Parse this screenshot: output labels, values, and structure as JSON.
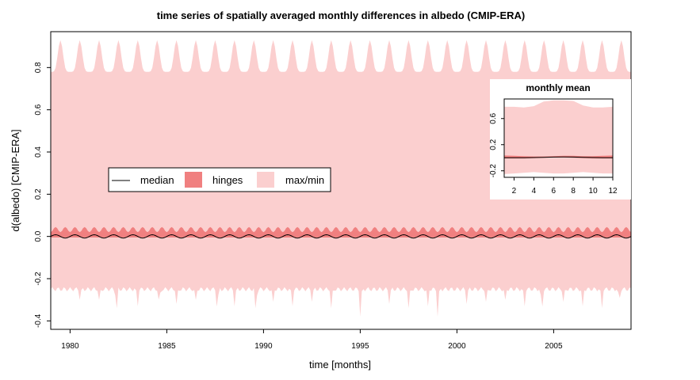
{
  "chart_data": [
    {
      "type": "area",
      "title": "time series of spatially averaged monthly differences in albedo (CMIP-ERA)",
      "xlabel": "time [months]",
      "ylabel": "d(albedo) [CMIP-ERA]",
      "xlim": [
        1979.0,
        2009.0
      ],
      "ylim": [
        -0.44,
        0.97
      ],
      "x_ticks": [
        1980,
        1985,
        1990,
        1995,
        2000,
        2005
      ],
      "y_ticks": [
        -0.4,
        -0.2,
        0.0,
        0.2,
        0.4,
        0.6,
        0.8
      ],
      "grid": false,
      "legend_position": "center-left",
      "legend": [
        {
          "label": "median",
          "kind": "line",
          "color": "#000000"
        },
        {
          "label": "hinges",
          "kind": "box",
          "color": "#f08080"
        },
        {
          "label": "max/min",
          "kind": "box",
          "color": "#fbcfcf"
        }
      ],
      "series": [
        {
          "name": "max/min",
          "kind": "band",
          "color": "#fbcfcf",
          "upper_peak": 0.93,
          "upper_trough": 0.78,
          "lower_typical": -0.25,
          "lower_spikes": [
            {
              "x": 1980.5,
              "y": -0.3
            },
            {
              "x": 1981.5,
              "y": -0.3
            },
            {
              "x": 1982.4,
              "y": -0.36
            },
            {
              "x": 1983.5,
              "y": -0.33
            },
            {
              "x": 1984.6,
              "y": -0.31
            },
            {
              "x": 1985.5,
              "y": -0.32
            },
            {
              "x": 1986.5,
              "y": -0.3
            },
            {
              "x": 1987.6,
              "y": -0.35
            },
            {
              "x": 1988.5,
              "y": -0.33
            },
            {
              "x": 1989.6,
              "y": -0.36
            },
            {
              "x": 1990.5,
              "y": -0.31
            },
            {
              "x": 1991.5,
              "y": -0.33
            },
            {
              "x": 1992.5,
              "y": -0.31
            },
            {
              "x": 1993.5,
              "y": -0.34
            },
            {
              "x": 1995.0,
              "y": -0.38
            },
            {
              "x": 1996.5,
              "y": -0.32
            },
            {
              "x": 1997.5,
              "y": -0.34
            },
            {
              "x": 1998.5,
              "y": -0.33
            },
            {
              "x": 1999.0,
              "y": -0.38
            },
            {
              "x": 2000.5,
              "y": -0.32
            },
            {
              "x": 2001.5,
              "y": -0.31
            },
            {
              "x": 2002.5,
              "y": -0.3
            },
            {
              "x": 2003.5,
              "y": -0.33
            },
            {
              "x": 2004.4,
              "y": -0.35
            },
            {
              "x": 2005.5,
              "y": -0.31
            },
            {
              "x": 2006.5,
              "y": -0.33
            },
            {
              "x": 2007.5,
              "y": -0.34
            },
            {
              "x": 2008.4,
              "y": -0.3
            }
          ]
        },
        {
          "name": "hinges",
          "kind": "band",
          "color": "#f08080",
          "upper_peak": 0.045,
          "upper_trough": 0.02,
          "lower": -0.005
        },
        {
          "name": "median",
          "kind": "line",
          "color": "#000000",
          "amplitude": 0.008,
          "center": 0.0
        }
      ]
    },
    {
      "type": "area",
      "title": "monthly mean",
      "xlim": [
        1,
        12
      ],
      "ylim": [
        -0.3,
        0.9
      ],
      "x_ticks": [
        2,
        4,
        6,
        8,
        10,
        12
      ],
      "y_ticks": [
        -0.2,
        0.2,
        0.6
      ],
      "x": [
        1,
        2,
        3,
        4,
        5,
        6,
        7,
        8,
        9,
        10,
        11,
        12
      ],
      "series": [
        {
          "name": "max",
          "values": [
            0.78,
            0.78,
            0.77,
            0.79,
            0.86,
            0.88,
            0.88,
            0.87,
            0.8,
            0.77,
            0.77,
            0.78
          ]
        },
        {
          "name": "min",
          "values": [
            -0.25,
            -0.24,
            -0.23,
            -0.22,
            -0.23,
            -0.24,
            -0.24,
            -0.23,
            -0.22,
            -0.23,
            -0.24,
            -0.24
          ]
        },
        {
          "name": "upper hinge",
          "values": [
            0.035,
            0.03,
            0.025,
            0.02,
            0.02,
            0.025,
            0.03,
            0.03,
            0.025,
            0.025,
            0.03,
            0.035
          ]
        },
        {
          "name": "lower hinge",
          "values": [
            -0.01,
            -0.01,
            -0.01,
            -0.005,
            0.0,
            0.005,
            0.005,
            0.0,
            -0.005,
            -0.01,
            -0.01,
            -0.01
          ]
        },
        {
          "name": "median",
          "values": [
            0.0,
            0.0,
            0.0,
            0.003,
            0.006,
            0.01,
            0.012,
            0.01,
            0.006,
            0.003,
            0.0,
            0.0
          ]
        }
      ]
    }
  ]
}
